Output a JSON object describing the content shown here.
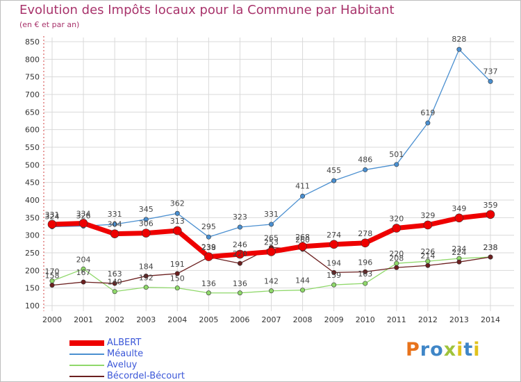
{
  "header": {
    "title": "Evolution des Impôts locaux pour la Commune par Habitant",
    "subtitle": "(en € et par an)"
  },
  "logo": {
    "text": "Proxiti",
    "colors": [
      "#e8731c",
      "#3f86c7",
      "#9fc33b",
      "#e0c21d"
    ]
  },
  "colors": {
    "grid": "#d9d9d9",
    "axis": "#555555",
    "title": "#a8336b",
    "legend_text": "#3b57d8"
  },
  "chart_data": {
    "type": "line",
    "title": "Evolution des Impôts locaux pour la Commune par Habitant",
    "subtitle": "(en € et par an)",
    "xlabel": "",
    "ylabel": "",
    "ylim": [
      100,
      850
    ],
    "yticks": [
      100,
      150,
      200,
      250,
      300,
      350,
      400,
      450,
      500,
      550,
      600,
      650,
      700,
      750,
      800,
      850
    ],
    "categories": [
      "2000",
      "2001",
      "2002",
      "2003",
      "2004",
      "2005",
      "2006",
      "2007",
      "2008",
      "2009",
      "2010",
      "2011",
      "2012",
      "2013",
      "2014"
    ],
    "grid": true,
    "legend_position": "bottom-left",
    "series": [
      {
        "name": "ALBERT",
        "color": "#ee0000",
        "values": [
          331,
          334,
          304,
          306,
          313,
          239,
          246,
          253,
          268,
          274,
          278,
          320,
          329,
          349,
          359
        ]
      },
      {
        "name": "Méaulte",
        "color": "#4a8fd0",
        "values": [
          324,
          326,
          331,
          345,
          362,
          295,
          323,
          331,
          411,
          455,
          486,
          501,
          619,
          828,
          737
        ]
      },
      {
        "name": "Aveluy",
        "color": "#8fd86a",
        "values": [
          170,
          204,
          140,
          152,
          150,
          136,
          136,
          142,
          144,
          159,
          163,
          220,
          226,
          234,
          238
        ]
      },
      {
        "name": "Bécordel-Bécourt",
        "color": "#6b1f1f",
        "values": [
          158,
          167,
          163,
          184,
          191,
          238,
          220,
          265,
          260,
          194,
          196,
          208,
          214,
          224,
          238
        ]
      }
    ]
  }
}
